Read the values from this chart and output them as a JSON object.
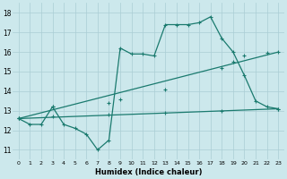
{
  "title": "",
  "xlabel": "Humidex (Indice chaleur)",
  "background_color": "#cce8ec",
  "line_color": "#1a7a6e",
  "grid_color": "#aacdd4",
  "xlim": [
    -0.5,
    23.5
  ],
  "ylim": [
    10.5,
    18.5
  ],
  "yticks": [
    11,
    12,
    13,
    14,
    15,
    16,
    17,
    18
  ],
  "xticks": [
    0,
    1,
    2,
    3,
    4,
    5,
    6,
    7,
    8,
    9,
    10,
    11,
    12,
    13,
    14,
    15,
    16,
    17,
    18,
    19,
    20,
    21,
    22,
    23
  ],
  "series1_x": [
    0,
    1,
    2,
    3,
    4,
    5,
    6,
    7,
    8,
    9,
    10,
    11,
    12,
    13,
    14,
    15,
    16,
    17,
    18,
    19,
    20,
    21,
    22,
    23
  ],
  "series1_y": [
    12.6,
    12.3,
    12.3,
    13.2,
    12.3,
    12.1,
    11.8,
    11.0,
    11.5,
    16.2,
    15.9,
    15.9,
    15.8,
    17.4,
    17.4,
    17.4,
    17.5,
    17.8,
    16.7,
    16.0,
    14.8,
    13.5,
    13.2,
    13.1
  ],
  "series2_x": [
    0,
    23
  ],
  "series2_y": [
    12.6,
    16.0
  ],
  "series3_x": [
    0,
    23
  ],
  "series3_y": [
    12.6,
    13.1
  ],
  "marker_x2": [
    0,
    3,
    8,
    9,
    13,
    18,
    19,
    20,
    22,
    23
  ],
  "marker_y2": [
    12.6,
    13.2,
    13.4,
    13.6,
    14.1,
    15.2,
    15.5,
    15.8,
    15.95,
    16.0
  ],
  "marker_x3": [
    0,
    3,
    8,
    13,
    18,
    23
  ],
  "marker_y3": [
    12.6,
    12.7,
    12.8,
    12.9,
    13.0,
    13.1
  ]
}
